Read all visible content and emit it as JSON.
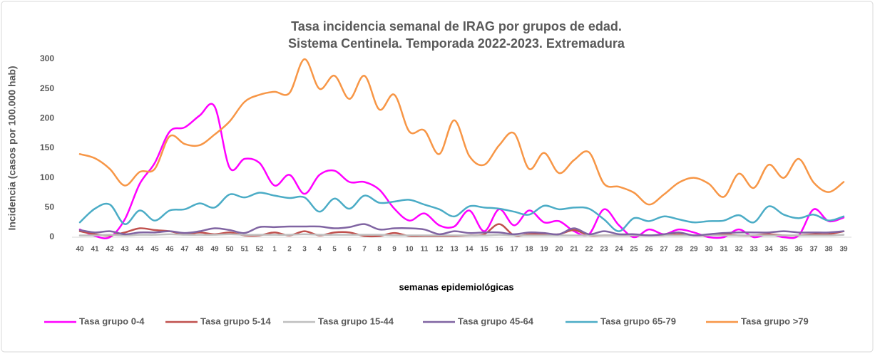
{
  "chart_data": {
    "type": "line",
    "title": [
      "Tasa incidencia semanal de IRAG por grupos de edad.",
      "Sistema Centinela. Temporada 2022-2023. Extremadura"
    ],
    "x_label": "semanas epidemiológicas",
    "y_label": "Incidencia (casos por 100.000 hab)",
    "categories": [
      "40",
      "41",
      "42",
      "43",
      "44",
      "45",
      "46",
      "47",
      "48",
      "49",
      "50",
      "51",
      "52",
      "1",
      "2",
      "3",
      "4",
      "5",
      "6",
      "7",
      "8",
      "9",
      "10",
      "11",
      "12",
      "13",
      "14",
      "15",
      "16",
      "17",
      "18",
      "19",
      "20",
      "21",
      "22",
      "23",
      "24",
      "25",
      "26",
      "27",
      "28",
      "29",
      "30",
      "31",
      "32",
      "33",
      "34",
      "35",
      "36",
      "37",
      "38",
      "39"
    ],
    "ylim": [
      0,
      300
    ],
    "yticks": [
      0,
      50,
      100,
      150,
      200,
      250,
      300
    ],
    "grid": false,
    "legend": "bottom",
    "series": [
      {
        "name": "Tasa grupo 0-4",
        "color": "#ff00ff",
        "values": [
          13,
          2,
          0,
          30,
          90,
          125,
          178,
          185,
          205,
          220,
          117,
          132,
          125,
          87,
          105,
          73,
          105,
          112,
          93,
          93,
          80,
          48,
          28,
          40,
          20,
          18,
          45,
          10,
          47,
          20,
          45,
          25,
          27,
          10,
          5,
          47,
          20,
          0,
          13,
          5,
          13,
          8,
          0,
          0,
          13,
          0,
          5,
          0,
          3,
          47,
          27,
          33
        ]
      },
      {
        "name": "Tasa grupo 5-14",
        "color": "#c0504d",
        "values": [
          10,
          5,
          3,
          8,
          15,
          12,
          10,
          5,
          8,
          5,
          8,
          3,
          3,
          8,
          3,
          10,
          3,
          8,
          8,
          2,
          2,
          7,
          2,
          2,
          2,
          2,
          3,
          5,
          22,
          3,
          5,
          5,
          5,
          12,
          3,
          3,
          3,
          3,
          3,
          3,
          5,
          3,
          3,
          5,
          3,
          3,
          5,
          3,
          3,
          5,
          5,
          10
        ]
      },
      {
        "name": "Tasa grupo 15-44",
        "color": "#bfbfbf",
        "values": [
          3,
          3,
          4,
          3,
          4,
          4,
          5,
          4,
          4,
          4,
          5,
          4,
          4,
          4,
          4,
          5,
          4,
          4,
          4,
          4,
          4,
          3,
          3,
          3,
          3,
          3,
          3,
          3,
          4,
          3,
          3,
          3,
          3,
          3,
          3,
          3,
          3,
          3,
          3,
          3,
          3,
          3,
          3,
          3,
          3,
          3,
          3,
          3,
          3,
          3,
          3,
          4
        ]
      },
      {
        "name": "Tasa grupo 45-64",
        "color": "#8064a2",
        "values": [
          12,
          8,
          10,
          5,
          8,
          8,
          10,
          7,
          10,
          15,
          12,
          7,
          17,
          17,
          18,
          18,
          18,
          15,
          17,
          22,
          13,
          15,
          15,
          13,
          5,
          10,
          7,
          8,
          8,
          5,
          8,
          7,
          5,
          15,
          5,
          10,
          5,
          5,
          3,
          5,
          8,
          3,
          5,
          7,
          8,
          8,
          8,
          10,
          8,
          8,
          8,
          10
        ]
      },
      {
        "name": "Tasa grupo 65-79",
        "color": "#4bacc6",
        "values": [
          25,
          48,
          55,
          22,
          45,
          28,
          45,
          47,
          57,
          50,
          72,
          67,
          75,
          70,
          66,
          67,
          43,
          65,
          48,
          70,
          58,
          60,
          63,
          55,
          47,
          35,
          52,
          50,
          48,
          43,
          38,
          53,
          47,
          50,
          48,
          30,
          10,
          32,
          27,
          35,
          30,
          25,
          27,
          28,
          37,
          25,
          52,
          38,
          32,
          38,
          28,
          35
        ]
      },
      {
        "name": "Tasa grupo >79",
        "color": "#f79646",
        "values": [
          140,
          133,
          115,
          87,
          110,
          115,
          170,
          157,
          155,
          173,
          195,
          228,
          240,
          245,
          243,
          300,
          250,
          272,
          233,
          272,
          215,
          240,
          178,
          180,
          140,
          197,
          137,
          122,
          155,
          175,
          115,
          142,
          108,
          130,
          143,
          90,
          85,
          75,
          55,
          72,
          92,
          100,
          90,
          68,
          107,
          83,
          122,
          100,
          132,
          92,
          76,
          93
        ]
      }
    ]
  }
}
